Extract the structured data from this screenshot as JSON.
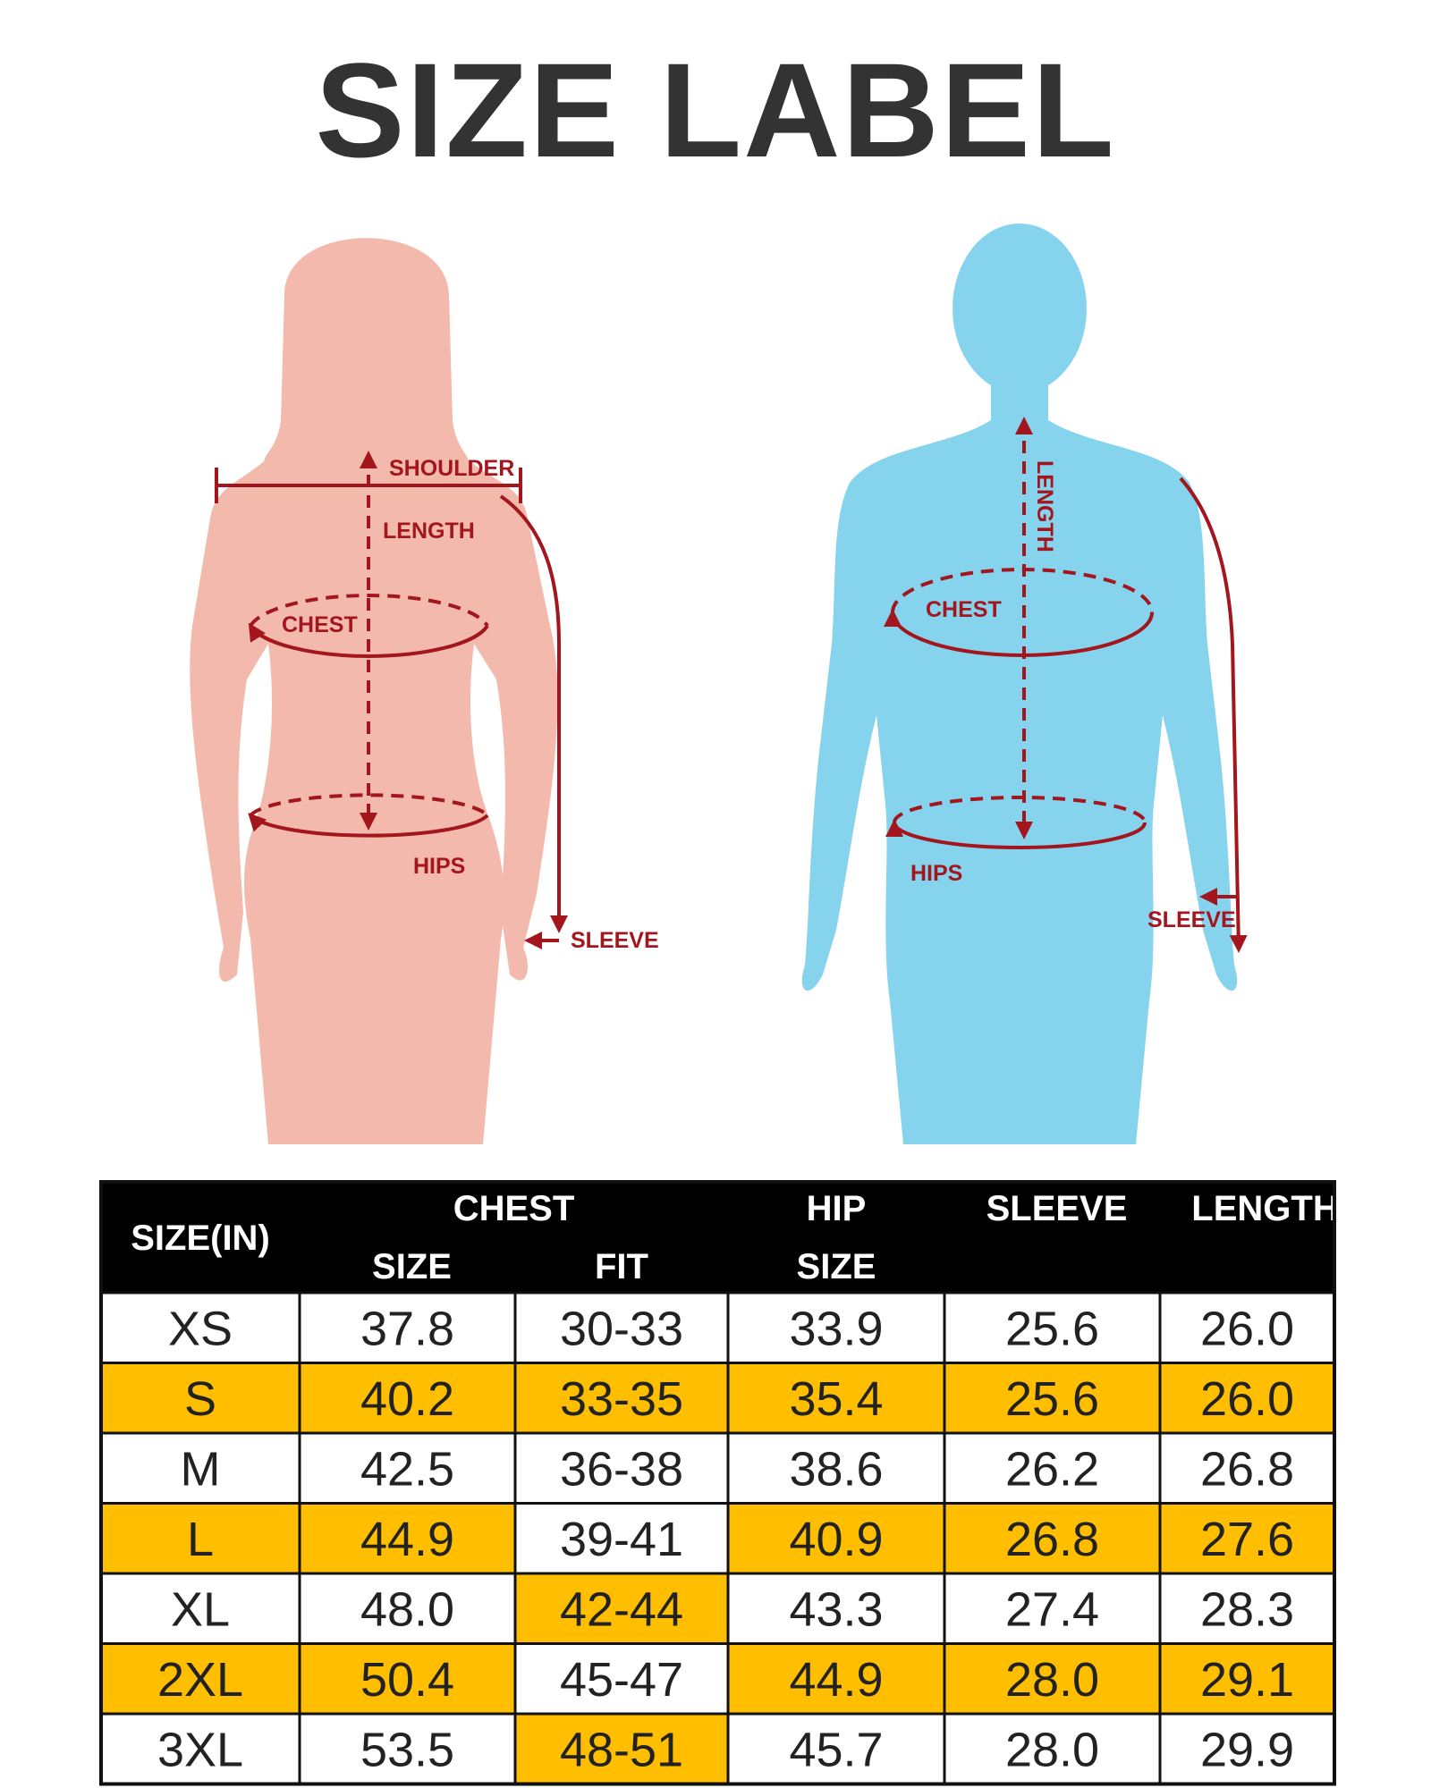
{
  "title": "SIZE LABEL",
  "figures": {
    "woman": {
      "shoulder": "SHOULDER",
      "length": "LENGTH",
      "chest": "CHEST",
      "hips": "HIPS",
      "sleeve": "SLEEVE"
    },
    "man": {
      "length": "LENGTH",
      "chest": "CHEST",
      "hips": "HIPS",
      "sleeve": "SLEEVE"
    }
  },
  "table": {
    "header": {
      "size": "SIZE(IN)",
      "chest": "CHEST",
      "chest_size": "SIZE",
      "chest_fit": "FIT",
      "hip": "HIP",
      "hip_size": "SIZE",
      "sleeve": "SLEEVE",
      "length": "LENGTH"
    },
    "rows": [
      [
        "XS",
        "37.8",
        "30-33",
        "33.9",
        "25.6",
        "26.0"
      ],
      [
        "S",
        "40.2",
        "33-35",
        "35.4",
        "25.6",
        "26.0"
      ],
      [
        "M",
        "42.5",
        "36-38",
        "38.6",
        "26.2",
        "26.8"
      ],
      [
        "L",
        "44.9",
        "39-41",
        "40.9",
        "26.8",
        "27.6"
      ],
      [
        "XL",
        "48.0",
        "42-44",
        "43.3",
        "27.4",
        "28.3"
      ],
      [
        "2XL",
        "50.4",
        "45-47",
        "44.9",
        "28.0",
        "29.1"
      ],
      [
        "3XL",
        "53.5",
        "48-51",
        "45.7",
        "28.0",
        "29.9"
      ]
    ]
  }
}
